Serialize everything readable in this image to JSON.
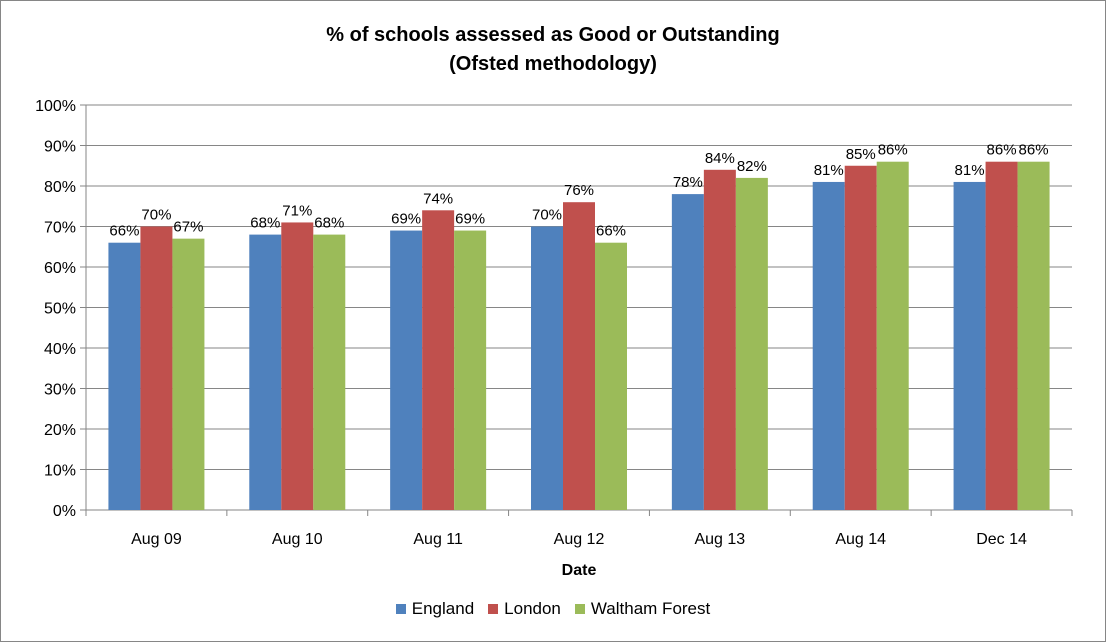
{
  "chart_data": {
    "type": "bar",
    "title_line1": "% of schools assessed as Good or Outstanding",
    "title_line2": "(Ofsted methodology)",
    "xlabel": "Date",
    "ylabel": "",
    "ylim": [
      0,
      100
    ],
    "yticks": [
      "0%",
      "10%",
      "20%",
      "30%",
      "40%",
      "50%",
      "60%",
      "70%",
      "80%",
      "90%",
      "100%"
    ],
    "categories": [
      "Aug 09",
      "Aug 10",
      "Aug 11",
      "Aug 12",
      "Aug 13",
      "Aug 14",
      "Dec 14"
    ],
    "series": [
      {
        "name": "England",
        "color": "#4F81BD",
        "values": [
          66,
          68,
          69,
          70,
          78,
          81,
          81
        ],
        "labels": [
          "66%",
          "68%",
          "69%",
          "70%",
          "78%",
          "81%",
          "81%"
        ]
      },
      {
        "name": "London",
        "color": "#C0504D",
        "values": [
          70,
          71,
          74,
          76,
          84,
          85,
          86
        ],
        "labels": [
          "70%",
          "71%",
          "74%",
          "76%",
          "84%",
          "85%",
          "86%"
        ]
      },
      {
        "name": "Waltham Forest",
        "color": "#9BBB59",
        "values": [
          67,
          68,
          69,
          66,
          82,
          86,
          86
        ],
        "labels": [
          "67%",
          "68%",
          "69%",
          "66%",
          "82%",
          "86%",
          "86%"
        ]
      }
    ],
    "grid": true,
    "legend_position": "bottom"
  }
}
